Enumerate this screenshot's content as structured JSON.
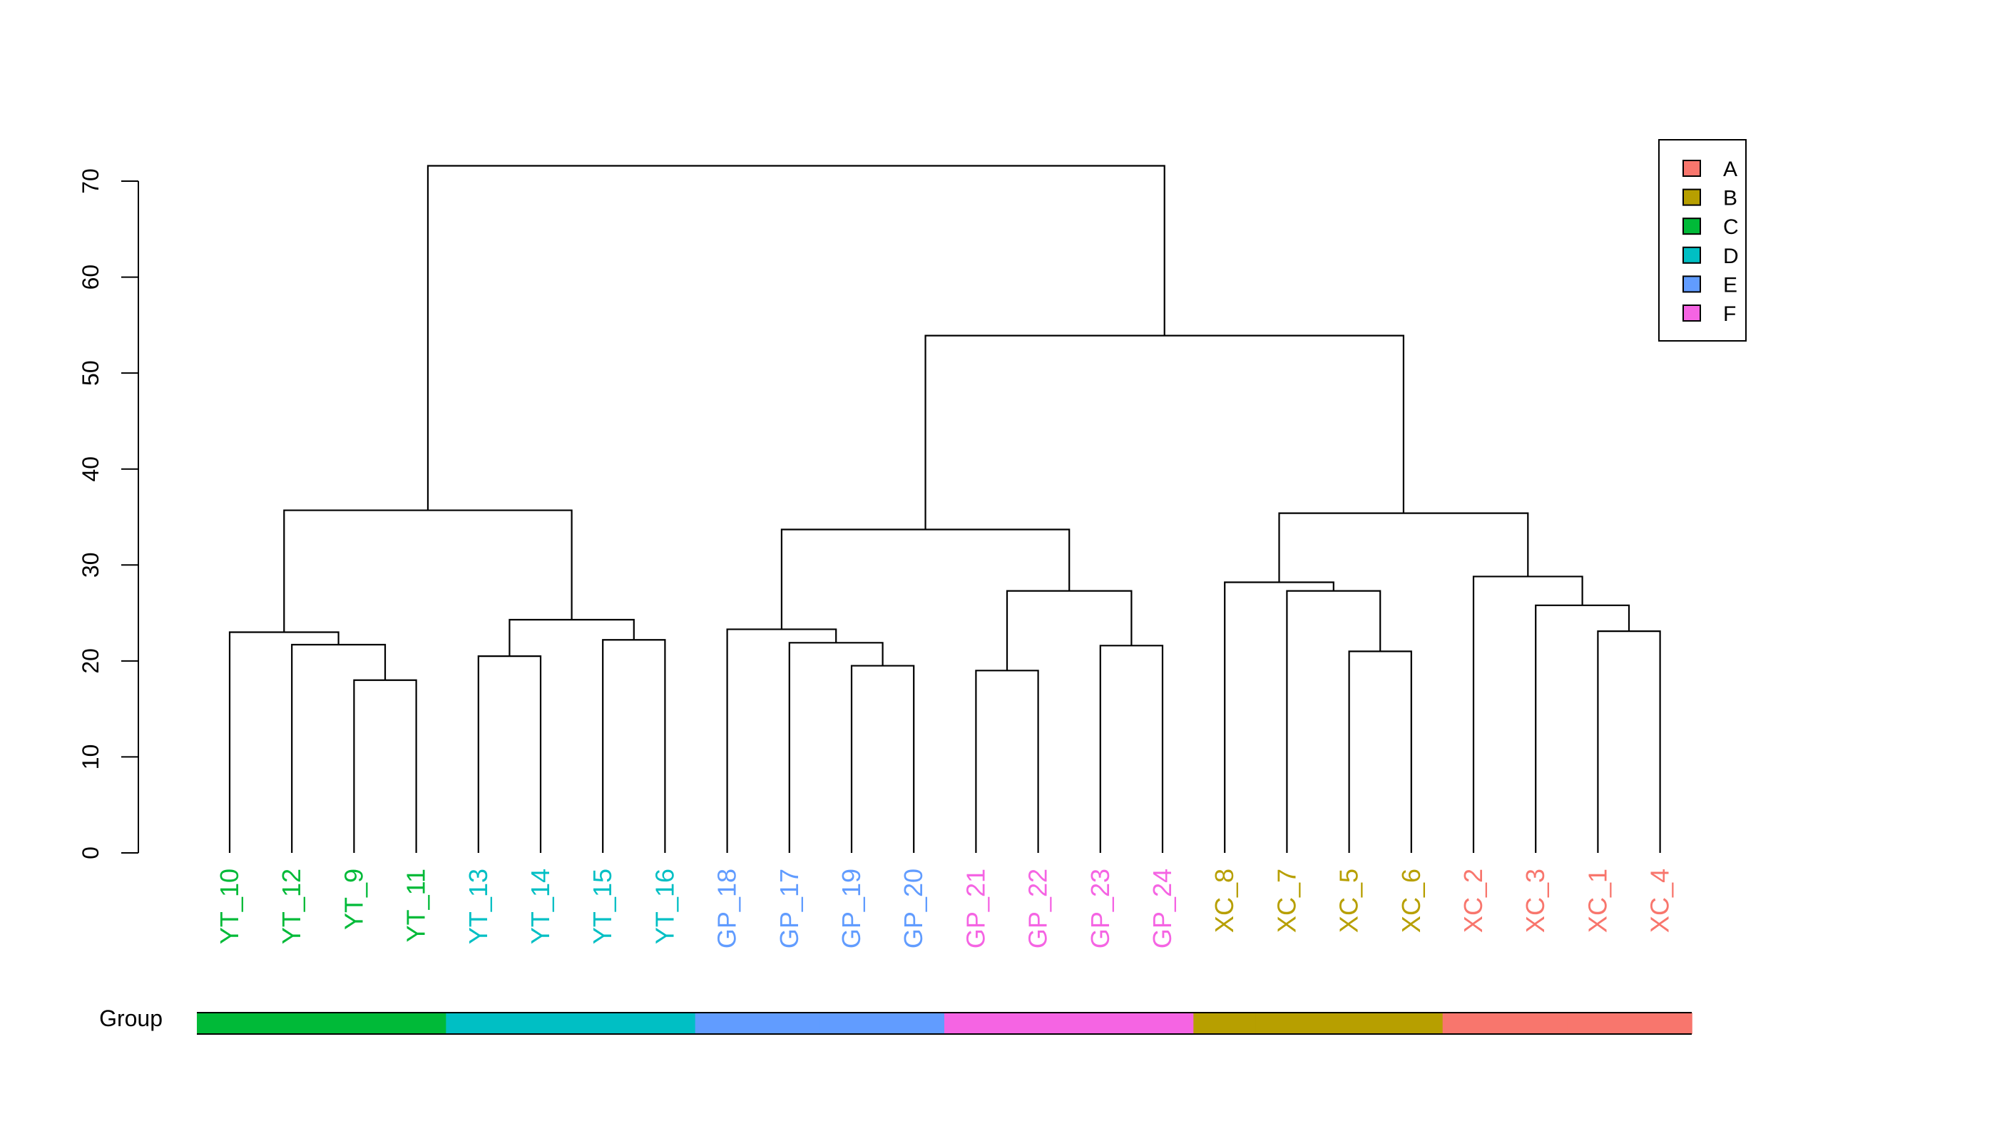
{
  "chart_data": {
    "type": "dendrogram",
    "title": "",
    "xlabel": "",
    "ylabel": "",
    "ylim": [
      0,
      70
    ],
    "yticks": [
      0,
      10,
      20,
      30,
      40,
      50,
      60,
      70
    ],
    "grid": false,
    "leaves": [
      {
        "label": "YT_10",
        "group": "C"
      },
      {
        "label": "YT_12",
        "group": "C"
      },
      {
        "label": "YT_9",
        "group": "C"
      },
      {
        "label": "YT_11",
        "group": "C"
      },
      {
        "label": "YT_13",
        "group": "D"
      },
      {
        "label": "YT_14",
        "group": "D"
      },
      {
        "label": "YT_15",
        "group": "D"
      },
      {
        "label": "YT_16",
        "group": "D"
      },
      {
        "label": "GP_18",
        "group": "E"
      },
      {
        "label": "GP_17",
        "group": "E"
      },
      {
        "label": "GP_19",
        "group": "E"
      },
      {
        "label": "GP_20",
        "group": "E"
      },
      {
        "label": "GP_21",
        "group": "F"
      },
      {
        "label": "GP_22",
        "group": "F"
      },
      {
        "label": "GP_23",
        "group": "F"
      },
      {
        "label": "GP_24",
        "group": "F"
      },
      {
        "label": "XC_8",
        "group": "B"
      },
      {
        "label": "XC_7",
        "group": "B"
      },
      {
        "label": "XC_5",
        "group": "B"
      },
      {
        "label": "XC_6",
        "group": "B"
      },
      {
        "label": "XC_2",
        "group": "A"
      },
      {
        "label": "XC_3",
        "group": "A"
      },
      {
        "label": "XC_1",
        "group": "A"
      },
      {
        "label": "XC_4",
        "group": "A"
      }
    ],
    "merges": [
      {
        "id": "m1",
        "left": "YT_9",
        "right": "YT_11",
        "height": 18.0
      },
      {
        "id": "m2",
        "left": "YT_12",
        "right": "m1",
        "height": 21.7
      },
      {
        "id": "m3",
        "left": "YT_10",
        "right": "m2",
        "height": 23.0
      },
      {
        "id": "m4",
        "left": "YT_13",
        "right": "YT_14",
        "height": 20.5
      },
      {
        "id": "m5",
        "left": "YT_15",
        "right": "YT_16",
        "height": 22.2
      },
      {
        "id": "m6",
        "left": "m4",
        "right": "m5",
        "height": 24.3
      },
      {
        "id": "m7",
        "left": "m3",
        "right": "m6",
        "height": 35.7
      },
      {
        "id": "m8",
        "left": "GP_19",
        "right": "GP_20",
        "height": 19.5
      },
      {
        "id": "m9",
        "left": "GP_17",
        "right": "m8",
        "height": 21.9
      },
      {
        "id": "m10",
        "left": "GP_18",
        "right": "m9",
        "height": 23.3
      },
      {
        "id": "m11",
        "left": "GP_21",
        "right": "GP_22",
        "height": 19.0
      },
      {
        "id": "m12",
        "left": "GP_23",
        "right": "GP_24",
        "height": 21.6
      },
      {
        "id": "m13",
        "left": "m11",
        "right": "m12",
        "height": 27.3
      },
      {
        "id": "m14",
        "left": "m10",
        "right": "m13",
        "height": 33.7
      },
      {
        "id": "m15",
        "left": "XC_5",
        "right": "XC_6",
        "height": 21.0
      },
      {
        "id": "m16",
        "left": "XC_7",
        "right": "m15",
        "height": 27.3
      },
      {
        "id": "m17",
        "left": "XC_8",
        "right": "m16",
        "height": 28.2
      },
      {
        "id": "m18",
        "left": "XC_1",
        "right": "XC_4",
        "height": 23.1
      },
      {
        "id": "m19",
        "left": "XC_3",
        "right": "m18",
        "height": 25.8
      },
      {
        "id": "m20",
        "left": "XC_2",
        "right": "m19",
        "height": 28.8
      },
      {
        "id": "m21",
        "left": "m17",
        "right": "m20",
        "height": 35.4
      },
      {
        "id": "m22",
        "left": "m14",
        "right": "m21",
        "height": 53.9
      },
      {
        "id": "m23",
        "left": "m7",
        "right": "m22",
        "height": 71.6
      }
    ],
    "color_bar_label": "Group",
    "legend": {
      "position": "top-right",
      "entries": [
        {
          "label": "A",
          "color": "#F8766D"
        },
        {
          "label": "B",
          "color": "#B79F00"
        },
        {
          "label": "C",
          "color": "#00BA38"
        },
        {
          "label": "D",
          "color": "#00BFC4"
        },
        {
          "label": "E",
          "color": "#619CFF"
        },
        {
          "label": "F",
          "color": "#F564E3"
        }
      ]
    }
  }
}
